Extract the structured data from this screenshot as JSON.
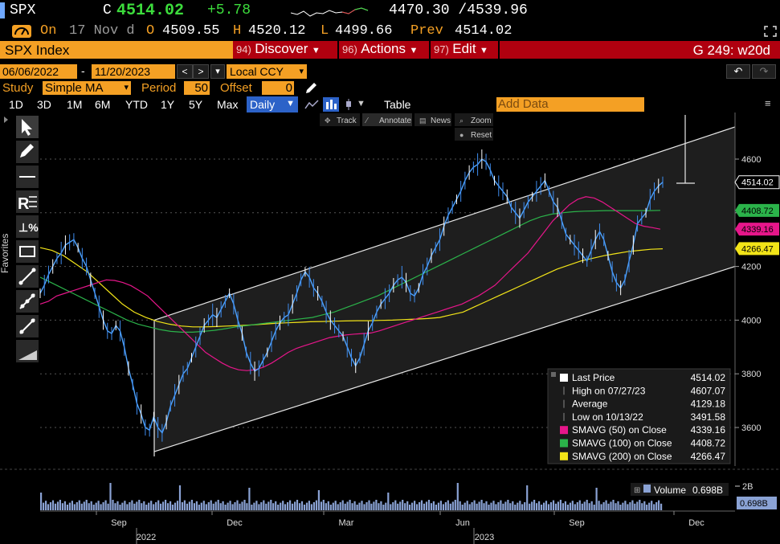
{
  "header": {
    "ticker": "SPX",
    "c_label": "C",
    "price": "4514.02",
    "change": "+5.78",
    "range": "4470.30 /4539.96",
    "on_label": "On",
    "date_label": "17 Nov d",
    "o_label": "O",
    "open": "4509.55",
    "h_label": "H",
    "high": "4520.12",
    "l_label": "L",
    "low": "4499.66",
    "prev_label": "Prev",
    "prev": "4514.02"
  },
  "menubar": {
    "security": "SPX Index",
    "discover_key": "94)",
    "discover": "Discover",
    "actions_key": "96)",
    "actions": "Actions",
    "edit_key": "97)",
    "edit": "Edit",
    "function": "G 249: w20d"
  },
  "daterow": {
    "start": "06/06/2022",
    "dash": "-",
    "end": "11/20/2023",
    "currency": "Local CCY"
  },
  "studyrow": {
    "study_label": "Study",
    "study_value": "Simple MA",
    "period_label": "Period",
    "period_value": "50",
    "offset_label": "Offset",
    "offset_value": "0"
  },
  "toolbar": {
    "ranges": [
      "1D",
      "3D",
      "1M",
      "6M",
      "YTD",
      "1Y",
      "5Y",
      "Max"
    ],
    "frequency": "Daily",
    "table": "Table",
    "add_data": "Add Data"
  },
  "chart_tools": {
    "track": "Track",
    "annotate": "Annotate",
    "news": "News",
    "zoom": "Zoom",
    "reset": "Reset"
  },
  "sidebar": {
    "favorites": "Favorites"
  },
  "legend": {
    "rows": [
      {
        "label": "Last Price",
        "value": "4514.02",
        "color": "#ffffff"
      },
      {
        "label": "High on 07/27/23",
        "value": "4607.07",
        "color": ""
      },
      {
        "label": "Average",
        "value": "4129.18",
        "color": ""
      },
      {
        "label": "Low on 10/13/22",
        "value": "3491.58",
        "color": ""
      },
      {
        "label": "SMAVG (50)  on Close",
        "value": "4339.16",
        "color": "#e6168a"
      },
      {
        "label": "SMAVG (100) on Close",
        "value": "4408.72",
        "color": "#2bb34a"
      },
      {
        "label": "SMAVG (200) on Close",
        "value": "4266.47",
        "color": "#f2e418"
      }
    ]
  },
  "volume": {
    "label": "Volume",
    "value": "0.698B",
    "tick": "2B"
  },
  "chart_data": {
    "type": "line",
    "ylim": [
      3490,
      4720
    ],
    "yticks": [
      "4600",
      "4400",
      "4200",
      "4000",
      "3800",
      "3600"
    ],
    "xticks": [
      "Sep",
      "Dec",
      "Mar",
      "Jun",
      "Sep",
      "Dec"
    ],
    "years": [
      "2022",
      "2023"
    ],
    "price_tags": [
      {
        "value": "4514.02",
        "color": "#ffffff"
      },
      {
        "value": "4408.72",
        "color": "#2bb34a"
      },
      {
        "value": "4339.16",
        "color": "#e6168a"
      },
      {
        "value": "4266.47",
        "color": "#f2e418"
      }
    ],
    "series": [
      {
        "name": "Last Price",
        "color": "#4da3ff",
        "values": [
          4100,
          4130,
          4170,
          4200,
          4230,
          4250,
          4280,
          4290,
          4300,
          4270,
          4230,
          4200,
          4150,
          4100,
          4050,
          4000,
          3960,
          3950,
          3980,
          3960,
          3900,
          3820,
          3760,
          3690,
          3650,
          3600,
          3590,
          3640,
          3600,
          3580,
          3620,
          3680,
          3720,
          3760,
          3800,
          3820,
          3860,
          3900,
          3940,
          3980,
          4000,
          4020,
          4010,
          4040,
          4070,
          4100,
          4060,
          4000,
          3950,
          3880,
          3840,
          3810,
          3820,
          3850,
          3880,
          3920,
          3960,
          3990,
          4010,
          4020,
          4060,
          4100,
          4150,
          4180,
          4160,
          4120,
          4100,
          4070,
          4030,
          4000,
          3980,
          3960,
          3940,
          3900,
          3860,
          3830,
          3860,
          3910,
          3960,
          3990,
          4030,
          4060,
          4080,
          4100,
          4130,
          4150,
          4160,
          4140,
          4100,
          4090,
          4120,
          4170,
          4200,
          4240,
          4270,
          4300,
          4350,
          4390,
          4420,
          4450,
          4480,
          4520,
          4550,
          4570,
          4580,
          4600,
          4590,
          4560,
          4520,
          4500,
          4480,
          4460,
          4420,
          4400,
          4380,
          4410,
          4440,
          4460,
          4480,
          4500,
          4520,
          4480,
          4440,
          4420,
          4370,
          4320,
          4300,
          4280,
          4260,
          4240,
          4220,
          4260,
          4300,
          4330,
          4300,
          4240,
          4180,
          4140,
          4120,
          4150,
          4220,
          4280,
          4360,
          4380,
          4400,
          4450,
          4480,
          4500,
          4514
        ]
      },
      {
        "name": "SMAVG (50) on Close",
        "color": "#e6168a",
        "values": [
          4060,
          4070,
          4090,
          4100,
          4110,
          4120,
          4130,
          4140,
          4150,
          4148,
          4140,
          4128,
          4110,
          4090,
          4060,
          4030,
          4000,
          3970,
          3940,
          3910,
          3880,
          3860,
          3840,
          3825,
          3815,
          3812,
          3815,
          3825,
          3840,
          3860,
          3880,
          3895,
          3905,
          3915,
          3925,
          3935,
          3940,
          3945,
          3948,
          3950,
          3952,
          3960,
          3970,
          3980,
          3990,
          4000,
          4010,
          4020,
          4030,
          4040,
          4050,
          4060,
          4075,
          4090,
          4110,
          4130,
          4160,
          4190,
          4220,
          4250,
          4290,
          4330,
          4370,
          4400,
          4430,
          4450,
          4460,
          4455,
          4440,
          4420,
          4400,
          4380,
          4360,
          4350,
          4345,
          4339
        ]
      },
      {
        "name": "SMAVG (100) on Close",
        "color": "#2bb34a",
        "values": [
          4160,
          4140,
          4120,
          4100,
          4080,
          4060,
          4040,
          4020,
          4000,
          3985,
          3975,
          3965,
          3958,
          3955,
          3955,
          3958,
          3962,
          3968,
          3975,
          3980,
          3985,
          3990,
          3995,
          4000,
          4005,
          4010,
          4020,
          4030,
          4045,
          4060,
          4075,
          4090,
          4110,
          4130,
          4150,
          4170,
          4190,
          4210,
          4230,
          4250,
          4270,
          4290,
          4310,
          4330,
          4350,
          4370,
          4385,
          4395,
          4400,
          4404,
          4406,
          4407,
          4408,
          4408,
          4408,
          4408,
          4408,
          4409
        ]
      },
      {
        "name": "SMAVG (200) on Close",
        "color": "#f2e418",
        "values": [
          4270,
          4260,
          4240,
          4210,
          4180,
          4140,
          4100,
          4060,
          4030,
          4010,
          3995,
          3985,
          3978,
          3975,
          3975,
          3976,
          3978,
          3980,
          3982,
          3985,
          3988,
          3990,
          3992,
          3994,
          3995,
          3996,
          3997,
          3998,
          3998,
          3999,
          4000,
          4002,
          4004,
          4006,
          4010,
          4020,
          4030,
          4050,
          4070,
          4090,
          4110,
          4130,
          4150,
          4170,
          4190,
          4205,
          4220,
          4230,
          4240,
          4248,
          4255,
          4260,
          4264,
          4266
        ]
      }
    ],
    "channel": {
      "upper": [
        4000,
        4720
      ],
      "lower": [
        3510,
        4200
      ]
    }
  }
}
